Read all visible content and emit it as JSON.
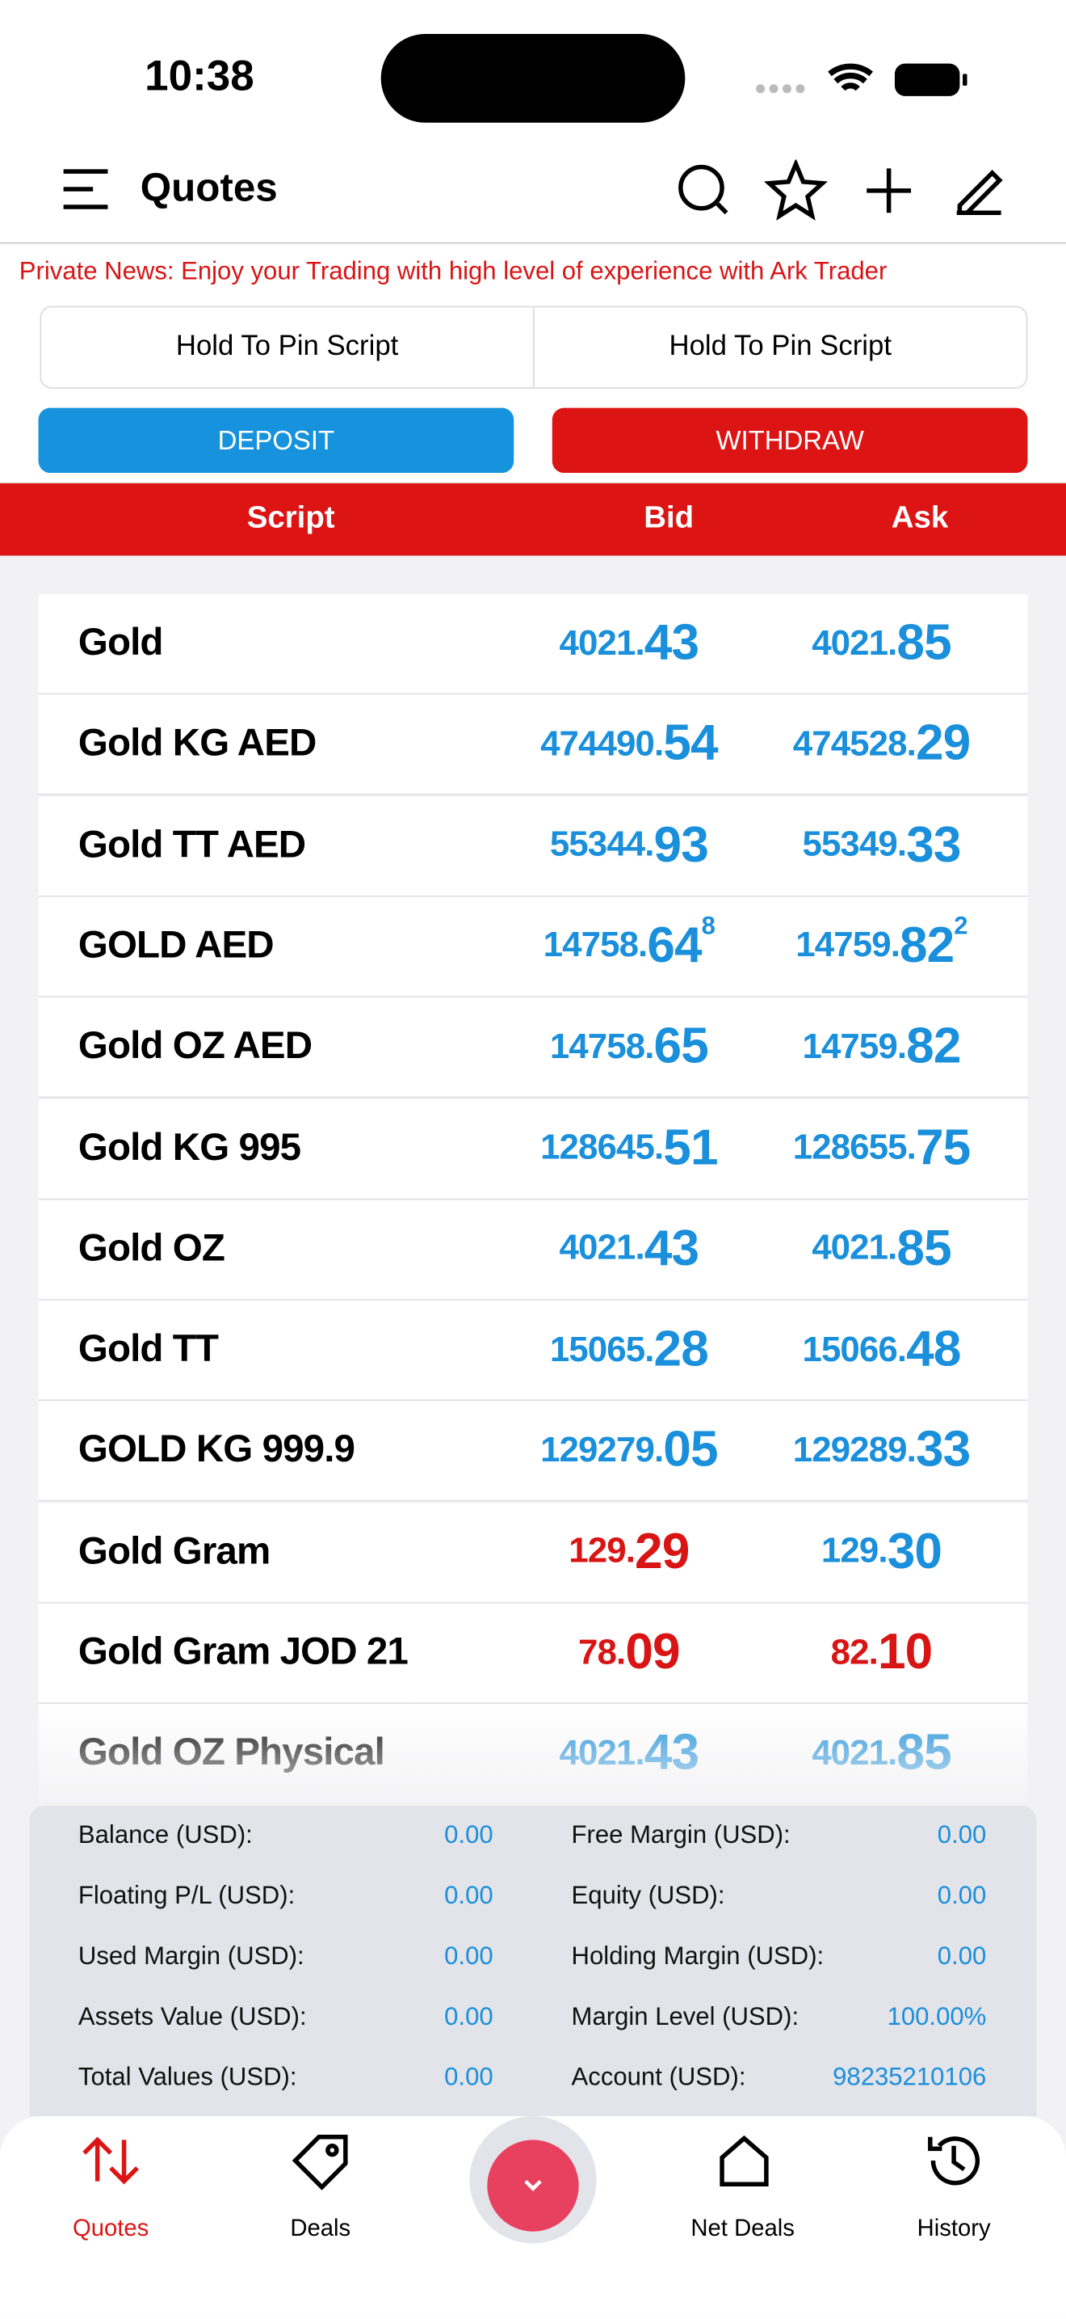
{
  "status_bar": {
    "time": "10:38"
  },
  "header": {
    "title": "Quotes"
  },
  "news": "Private News: Enjoy your Trading with high level of experience with Ark Trader",
  "pin_slots": [
    "Hold To Pin Script",
    "Hold To Pin Script"
  ],
  "actions": {
    "deposit": "DEPOSIT",
    "withdraw": "WITHDRAW"
  },
  "table": {
    "columns": [
      "Script",
      "Bid",
      "Ask"
    ],
    "rows": [
      {
        "script": "Gold",
        "bid": {
          "small": "4021.",
          "large": "43",
          "color": "blue"
        },
        "ask": {
          "small": "4021.",
          "large": "85",
          "color": "blue"
        }
      },
      {
        "script": "Gold KG AED",
        "bid": {
          "small": "474490.",
          "large": "54",
          "color": "blue"
        },
        "ask": {
          "small": "474528.",
          "large": "29",
          "color": "blue"
        }
      },
      {
        "script": "Gold TT AED",
        "bid": {
          "small": "55344.",
          "large": "93",
          "color": "blue"
        },
        "ask": {
          "small": "55349.",
          "large": "33",
          "color": "blue"
        }
      },
      {
        "script": "GOLD AED",
        "bid": {
          "small": "14758.",
          "large": "64",
          "sup": "8",
          "color": "blue"
        },
        "ask": {
          "small": "14759.",
          "large": "82",
          "sup": "2",
          "color": "blue"
        }
      },
      {
        "script": "Gold OZ AED",
        "bid": {
          "small": "14758.",
          "large": "65",
          "color": "blue"
        },
        "ask": {
          "small": "14759.",
          "large": "82",
          "color": "blue"
        }
      },
      {
        "script": "Gold KG 995",
        "bid": {
          "small": "128645.",
          "large": "51",
          "color": "blue"
        },
        "ask": {
          "small": "128655.",
          "large": "75",
          "color": "blue"
        }
      },
      {
        "script": "Gold OZ",
        "bid": {
          "small": "4021.",
          "large": "43",
          "color": "blue"
        },
        "ask": {
          "small": "4021.",
          "large": "85",
          "color": "blue"
        }
      },
      {
        "script": "Gold TT",
        "bid": {
          "small": "15065.",
          "large": "28",
          "color": "blue"
        },
        "ask": {
          "small": "15066.",
          "large": "48",
          "color": "blue"
        }
      },
      {
        "script": "GOLD KG 999.9",
        "bid": {
          "small": "129279.",
          "large": "05",
          "color": "blue"
        },
        "ask": {
          "small": "129289.",
          "large": "33",
          "color": "blue"
        }
      },
      {
        "script": "Gold Gram",
        "bid": {
          "small": "129.",
          "large": "29",
          "color": "red"
        },
        "ask": {
          "small": "129.",
          "large": "30",
          "color": "blue"
        }
      },
      {
        "script": "Gold Gram JOD 21",
        "bid": {
          "small": "78.",
          "large": "09",
          "color": "red"
        },
        "ask": {
          "small": "82.",
          "large": "10",
          "color": "red"
        }
      },
      {
        "script": "Gold OZ Physical",
        "bid": {
          "small": "4021.",
          "large": "43",
          "color": "blue"
        },
        "ask": {
          "small": "4021.",
          "large": "85",
          "color": "blue"
        }
      }
    ]
  },
  "account": {
    "left": [
      {
        "label": "Balance (USD):",
        "value": "0.00"
      },
      {
        "label": "Floating P/L (USD):",
        "value": "0.00"
      },
      {
        "label": "Used Margin (USD):",
        "value": "0.00"
      },
      {
        "label": "Assets Value (USD):",
        "value": "0.00"
      },
      {
        "label": "Total Values (USD):",
        "value": "0.00"
      }
    ],
    "right": [
      {
        "label": "Free Margin (USD):",
        "value": "0.00"
      },
      {
        "label": "Equity (USD):",
        "value": "0.00"
      },
      {
        "label": "Holding Margin (USD):",
        "value": "0.00"
      },
      {
        "label": "Margin Level (USD):",
        "value": "100.00%"
      },
      {
        "label": "Account (USD):",
        "value": "98235210106"
      }
    ]
  },
  "nav": [
    "Quotes",
    "Deals",
    "Net Deals",
    "History"
  ]
}
